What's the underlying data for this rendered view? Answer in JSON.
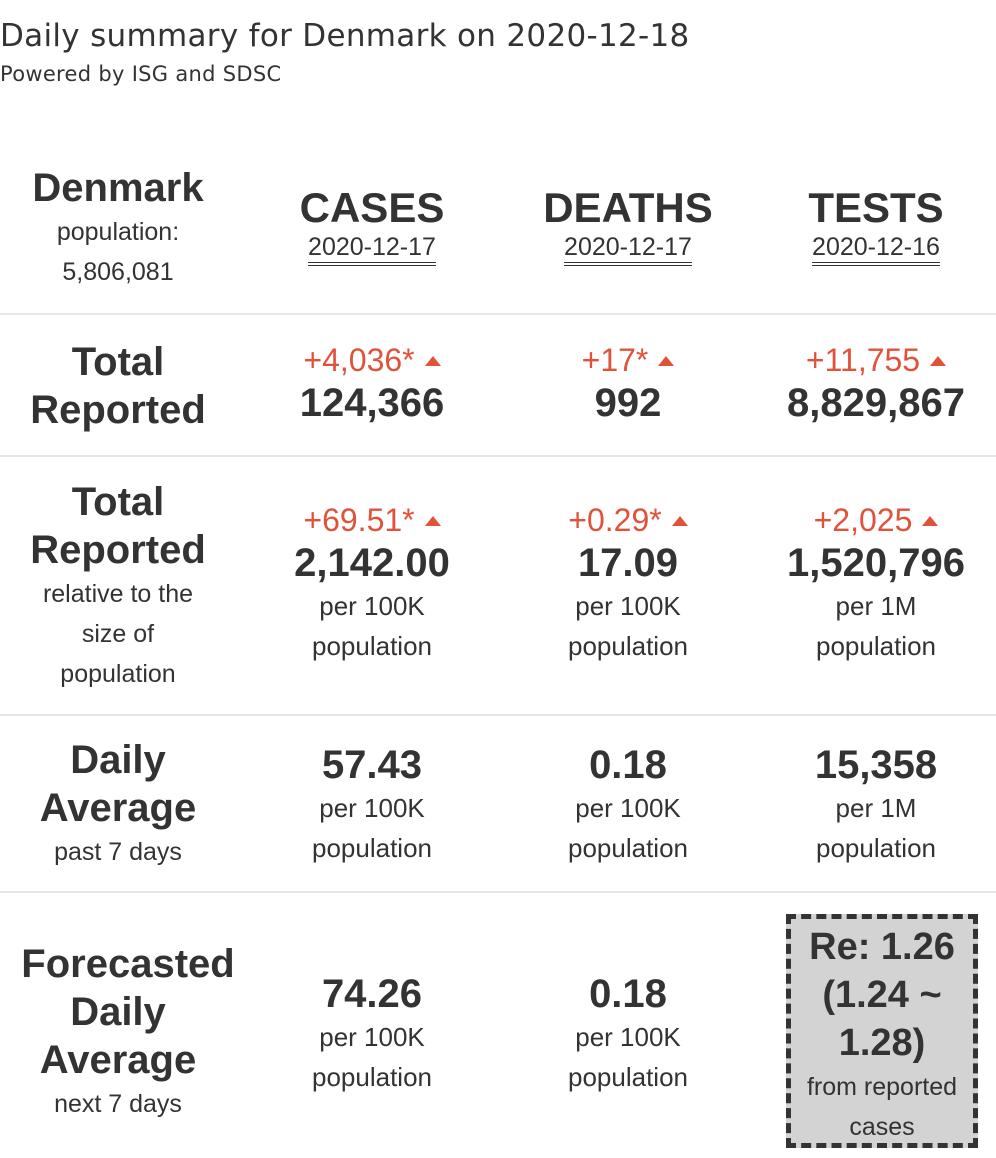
{
  "header": {
    "title": "Daily summary for Denmark on 2020-12-18",
    "subtitle": "Powered by ISG and SDSC"
  },
  "country": {
    "name": "Denmark",
    "population_label": "population:",
    "population": "5,806,081"
  },
  "columns": [
    {
      "name": "CASES",
      "date": "2020-12-17"
    },
    {
      "name": "DEATHS",
      "date": "2020-12-17"
    },
    {
      "name": "TESTS",
      "date": "2020-12-16"
    }
  ],
  "total_reported": {
    "label_line1": "Total",
    "label_line2": "Reported",
    "cells": [
      {
        "delta": "+4,036*",
        "value": "124,366"
      },
      {
        "delta": "+17*",
        "value": "992"
      },
      {
        "delta": "+11,755",
        "value": "8,829,867"
      }
    ]
  },
  "relative": {
    "label_line1": "Total",
    "label_line2": "Reported",
    "note_line1": "relative to the",
    "note_line2": "size of",
    "note_line3": "population",
    "cells": [
      {
        "delta": "+69.51*",
        "value": "2,142.00",
        "unit1": "per 100K",
        "unit2": "population"
      },
      {
        "delta": "+0.29*",
        "value": "17.09",
        "unit1": "per 100K",
        "unit2": "population"
      },
      {
        "delta": "+2,025",
        "value": "1,520,796",
        "unit1": "per 1M",
        "unit2": "population"
      }
    ]
  },
  "daily_average": {
    "label_line1": "Daily",
    "label_line2": "Average",
    "note": "past 7 days",
    "cells": [
      {
        "value": "57.43",
        "unit1": "per 100K",
        "unit2": "population"
      },
      {
        "value": "0.18",
        "unit1": "per 100K",
        "unit2": "population"
      },
      {
        "value": "15,358",
        "unit1": "per 1M",
        "unit2": "population"
      }
    ]
  },
  "forecast": {
    "label_line1": "Forecasted",
    "label_line2": "Daily",
    "label_line3": "Average",
    "note": "next 7 days",
    "cells": [
      {
        "value": "74.26",
        "unit1": "per 100K",
        "unit2": "population"
      },
      {
        "value": "0.18",
        "unit1": "per 100K",
        "unit2": "population"
      }
    ],
    "re": {
      "line1": "Re: 1.26",
      "line2": "(1.24 ~",
      "line3": "1.28)",
      "note_line1": "from reported",
      "note_line2": "cases"
    }
  },
  "colors": {
    "text": "#333333",
    "increase": "#e0533a",
    "re_box": "#d3d3d3"
  },
  "icons": {
    "increase": "triangle-up-icon"
  }
}
